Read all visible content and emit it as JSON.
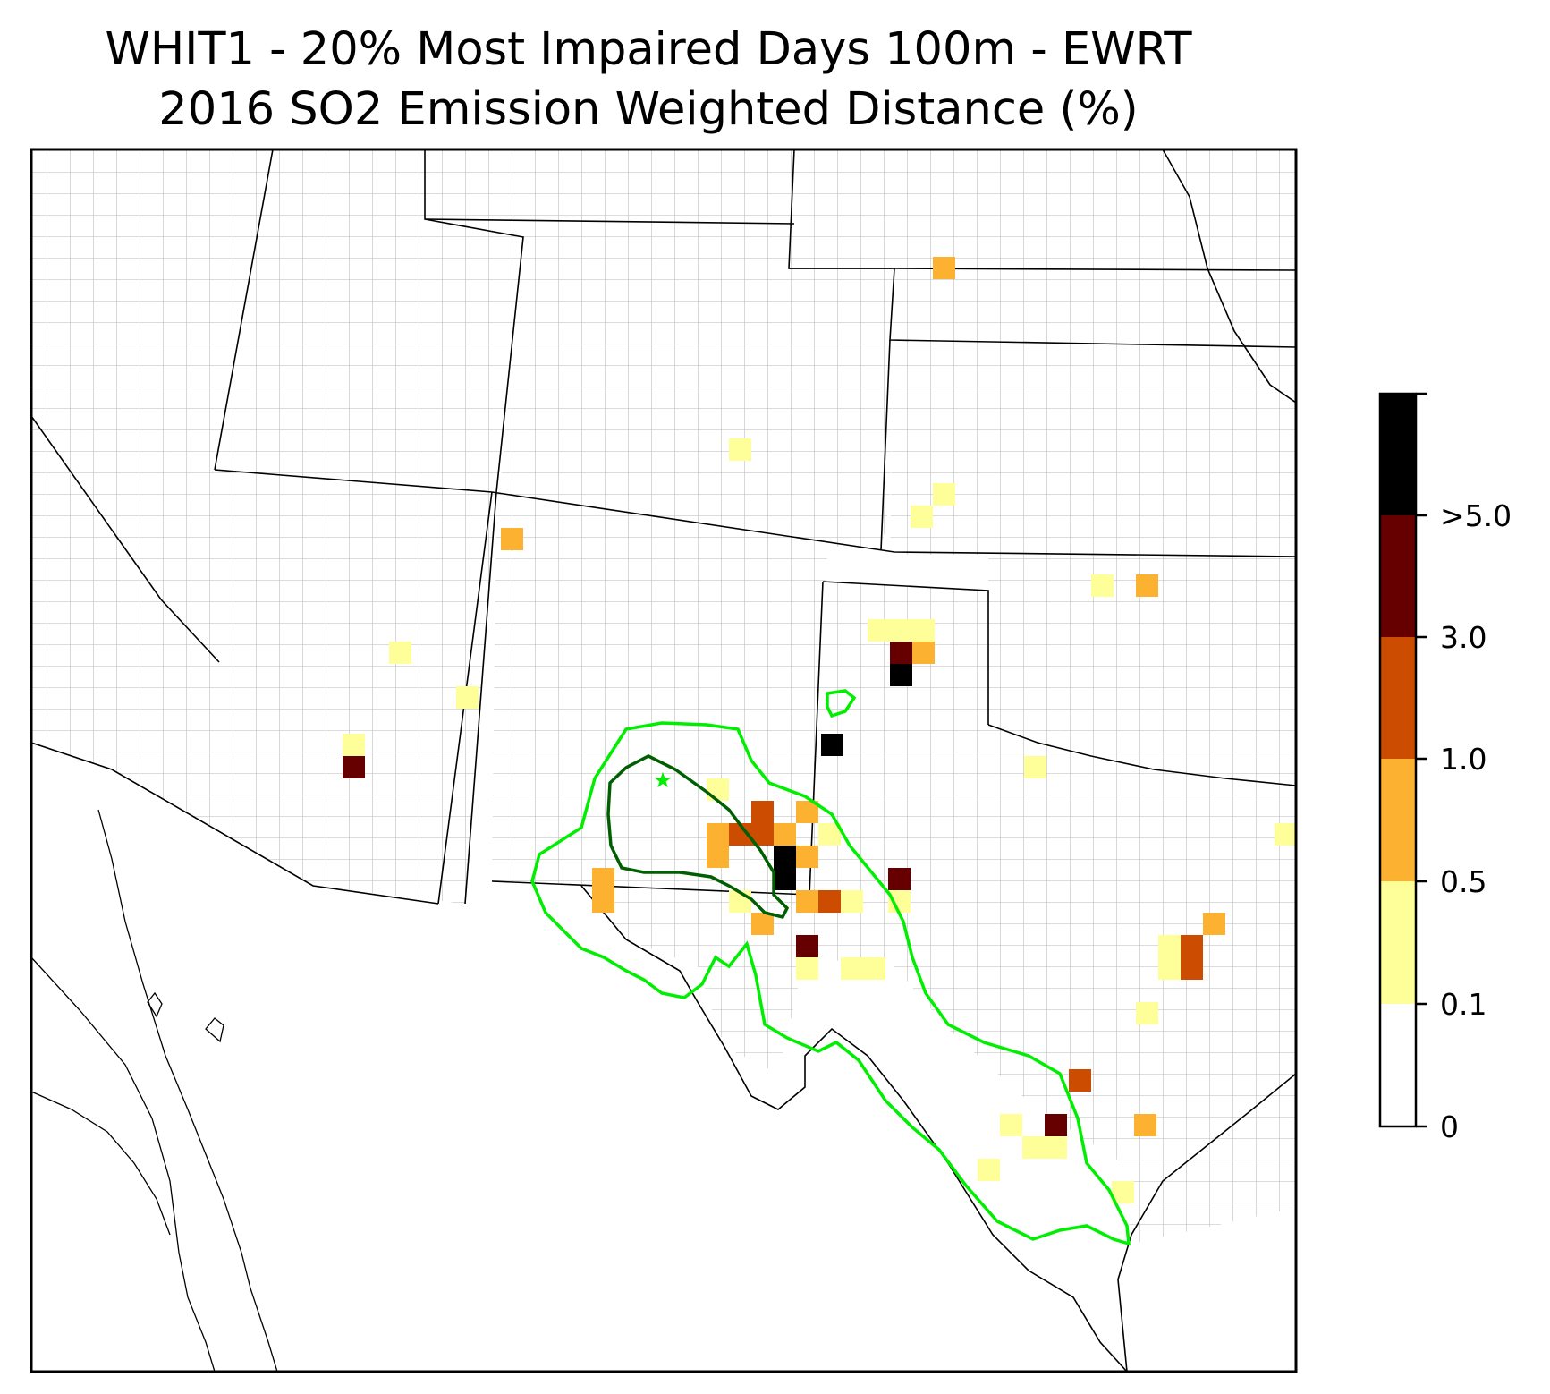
{
  "title_line1": "WHIT1 - 20% Most Impaired Days 100m - EWRT",
  "title_line2": "2016 SO2 Emission Weighted Distance (%)",
  "colorbar": {
    "bins": [
      {
        "color": "#ffffff"
      },
      {
        "color": "#ffff99"
      },
      {
        "color": "#fdb130"
      },
      {
        "color": "#cc4c02"
      },
      {
        "color": "#660000"
      },
      {
        "color": "#000000"
      }
    ],
    "tick_labels": [
      "0",
      "0.1",
      "0.5",
      "1.0",
      "3.0",
      ">5.0"
    ]
  },
  "map": {
    "site_marker": "star-icon",
    "contour_colors": {
      "outer": "#00ee00",
      "inner": "#005f00"
    }
  }
}
